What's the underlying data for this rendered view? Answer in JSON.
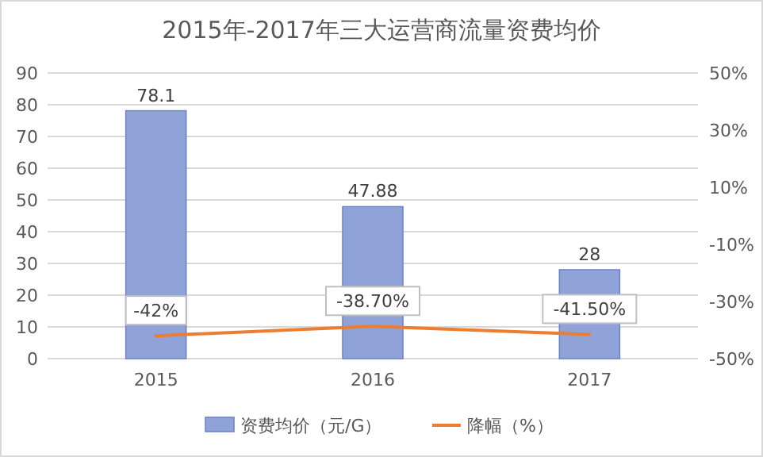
{
  "chart_data": {
    "type": "bar",
    "title": "2015年-2017年三大运营商流量资费均价",
    "categories": [
      "2015",
      "2016",
      "2017"
    ],
    "series": [
      {
        "name": "资费均价（元/G）",
        "color": "#8fa3d9",
        "values": [
          78.1,
          47.88,
          28
        ],
        "value_labels": [
          "78.1",
          "47.88",
          "28"
        ]
      },
      {
        "name": "降幅（%）",
        "type": "line",
        "axis": "y2",
        "color": "#ed7d31",
        "values": [
          -42,
          -38.7,
          -41.5
        ],
        "value_labels": [
          "-42%",
          "-38.70%",
          "-41.50%"
        ]
      }
    ],
    "ylim": [
      0,
      90
    ],
    "yticks": [
      0,
      10,
      20,
      30,
      40,
      50,
      60,
      70,
      80,
      90
    ],
    "y2lim": [
      -50,
      50
    ],
    "y2ticks": [
      {
        "value": -50,
        "label": "-50%"
      },
      {
        "value": -30,
        "label": "-30%"
      },
      {
        "value": -10,
        "label": "-10%"
      },
      {
        "value": 10,
        "label": "10%"
      },
      {
        "value": 30,
        "label": "30%"
      },
      {
        "value": 50,
        "label": "50%"
      }
    ],
    "grid": "y",
    "legend": "bottom"
  }
}
